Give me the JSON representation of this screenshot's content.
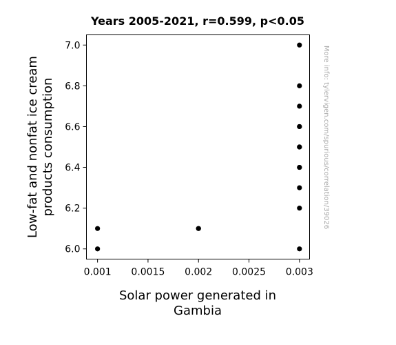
{
  "chart_data": {
    "type": "scatter",
    "title": "Years 2005-2021, r=0.599, p<0.05",
    "xlabel_lines": [
      "Solar power generated in",
      "Gambia"
    ],
    "ylabel_lines": [
      "Low-fat and nonfat ice cream",
      "products consumption"
    ],
    "credit": "More info: tylervigen.com/spurious/correlation/39026",
    "xlim": [
      0.00089,
      0.0031
    ],
    "ylim": [
      5.95,
      7.05
    ],
    "x_ticks": [
      0.001,
      0.0015,
      0.002,
      0.0025,
      0.003
    ],
    "x_tick_labels": [
      "0.001",
      "0.0015",
      "0.002",
      "0.0025",
      "0.003"
    ],
    "y_ticks": [
      6.0,
      6.2,
      6.4,
      6.6,
      6.8,
      7.0
    ],
    "y_tick_labels": [
      "6.0",
      "6.2",
      "6.4",
      "6.6",
      "6.8",
      "7.0"
    ],
    "points": [
      {
        "x": 0.001,
        "y": 6.1
      },
      {
        "x": 0.001,
        "y": 6.0
      },
      {
        "x": 0.002,
        "y": 6.1
      },
      {
        "x": 0.002,
        "y": 6.1
      },
      {
        "x": 0.003,
        "y": 7.0
      },
      {
        "x": 0.003,
        "y": 6.8
      },
      {
        "x": 0.003,
        "y": 6.7
      },
      {
        "x": 0.003,
        "y": 6.6
      },
      {
        "x": 0.003,
        "y": 6.6
      },
      {
        "x": 0.003,
        "y": 6.5
      },
      {
        "x": 0.003,
        "y": 6.5
      },
      {
        "x": 0.003,
        "y": 6.4
      },
      {
        "x": 0.003,
        "y": 6.4
      },
      {
        "x": 0.003,
        "y": 6.3
      },
      {
        "x": 0.003,
        "y": 6.2
      },
      {
        "x": 0.003,
        "y": 6.0
      },
      {
        "x": 0.003,
        "y": 6.5
      }
    ],
    "marker_color": "#000000",
    "grid": false
  }
}
